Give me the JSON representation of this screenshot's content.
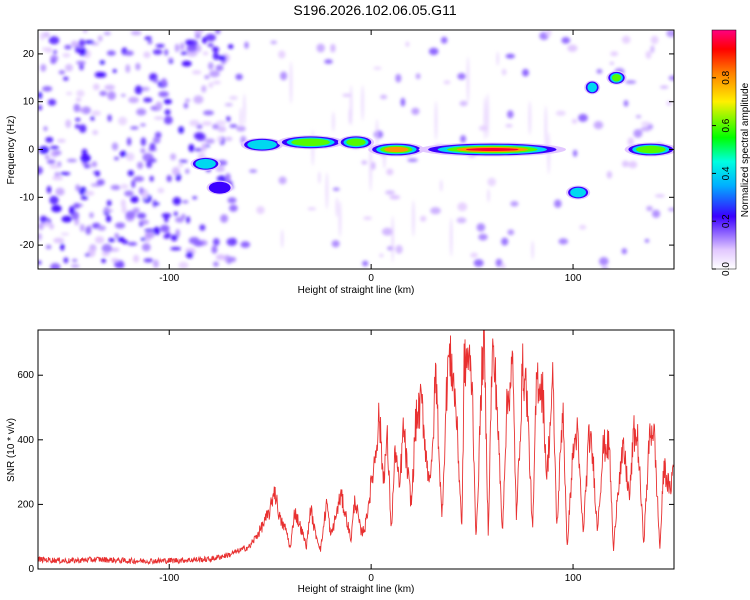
{
  "title": "S196.2026.102.06.05.G11",
  "chart_data": [
    {
      "type": "heatmap",
      "xlabel": "Height of straight line (km)",
      "ylabel": "Frequency (Hz)",
      "xlim": [
        -165,
        150
      ],
      "ylim": [
        -25,
        25
      ],
      "x_ticks": [
        -100,
        0,
        100
      ],
      "y_ticks": [
        -20,
        -10,
        0,
        10,
        20
      ],
      "colorbar": {
        "label": "Normalized spectral amplitude",
        "range": [
          0,
          1
        ],
        "ticks": [
          "0.0",
          "0.2",
          "0.4",
          "0.6",
          "0.8"
        ],
        "tick_values": [
          0.0,
          0.2,
          0.4,
          0.6,
          0.8
        ]
      },
      "ridge_segments": [
        {
          "x": [
            -88,
            -76
          ],
          "y": -3,
          "amplitude": 0.4
        },
        {
          "x": [
            -80,
            -70
          ],
          "y": -8,
          "amplitude": 0.35
        },
        {
          "x": [
            -63,
            -45
          ],
          "y": 1,
          "amplitude": 0.55
        },
        {
          "x": [
            -45,
            -15
          ],
          "y": 1.5,
          "amplitude": 0.75
        },
        {
          "x": [
            -15,
            0
          ],
          "y": 1.5,
          "amplitude": 0.6
        },
        {
          "x": [
            0,
            25
          ],
          "y": 0,
          "amplitude": 0.85
        },
        {
          "x": [
            25,
            95
          ],
          "y": 0,
          "amplitude": 0.95
        },
        {
          "x": [
            98,
            107
          ],
          "y": -9,
          "amplitude": 0.5
        },
        {
          "x": [
            107,
            112
          ],
          "y": 13,
          "amplitude": 0.45
        },
        {
          "x": [
            118,
            125
          ],
          "y": 15,
          "amplitude": 0.7
        },
        {
          "x": [
            127,
            150
          ],
          "y": 0,
          "amplitude": 0.75
        }
      ]
    },
    {
      "type": "line",
      "xlabel": "Height of straight line (km)",
      "ylabel": "SNR (10 * v/v)",
      "xlim": [
        -165,
        150
      ],
      "ylim": [
        0,
        740
      ],
      "x_ticks": [
        -100,
        0,
        100
      ],
      "y_ticks": [
        0,
        200,
        400,
        600
      ],
      "color": "#e83030",
      "series": [
        {
          "x": [
            -165,
            -150,
            -135,
            -120,
            -105,
            -90,
            -80,
            -70,
            -60,
            -55,
            -50,
            -48,
            -45,
            -42,
            -40,
            -38,
            -35,
            -32,
            -30,
            -28,
            -25,
            -22,
            -20,
            -18,
            -15,
            -12,
            -10,
            -8,
            -5,
            -3,
            0,
            2,
            4,
            6,
            8,
            10,
            12,
            14,
            16,
            18,
            20,
            22,
            25,
            28,
            30,
            32,
            35,
            38,
            40,
            42,
            45,
            46,
            48,
            50,
            52,
            55,
            56,
            58,
            60,
            62,
            65,
            67,
            70,
            72,
            75,
            77,
            80,
            82,
            85,
            87,
            90,
            92,
            95,
            97,
            100,
            102,
            105,
            108,
            110,
            112,
            115,
            118,
            120,
            122,
            125,
            128,
            130,
            132,
            135,
            138,
            140,
            143,
            145,
            148,
            150
          ],
          "values": [
            30,
            25,
            30,
            25,
            25,
            28,
            30,
            45,
            70,
            120,
            180,
            250,
            150,
            120,
            60,
            180,
            130,
            70,
            190,
            120,
            60,
            210,
            100,
            150,
            230,
            150,
            90,
            220,
            110,
            130,
            260,
            350,
            480,
            280,
            400,
            120,
            380,
            240,
            440,
            300,
            200,
            450,
            520,
            300,
            300,
            620,
            150,
            650,
            630,
            500,
            120,
            620,
            660,
            580,
            80,
            640,
            700,
            110,
            680,
            560,
            110,
            480,
            640,
            150,
            620,
            560,
            110,
            600,
            550,
            280,
            580,
            120,
            520,
            60,
            360,
            430,
            110,
            420,
            330,
            120,
            380,
            380,
            50,
            240,
            370,
            220,
            420,
            400,
            80,
            420,
            440,
            60,
            320,
            240,
            330
          ]
        }
      ]
    }
  ]
}
